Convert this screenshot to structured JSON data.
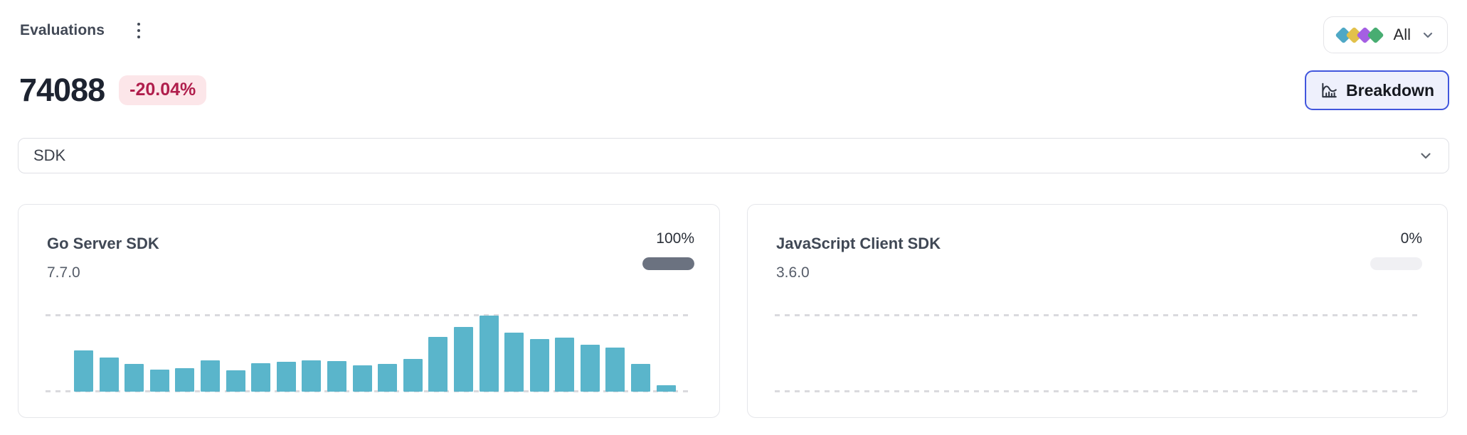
{
  "page": {
    "title": "Evaluations",
    "metric": {
      "value": "74088",
      "delta": "-20.04%"
    }
  },
  "toolbar": {
    "filter_all": {
      "label": "All",
      "diamond_colors": [
        "#4fa8c5",
        "#e2c14b",
        "#a55fe3",
        "#48ad72"
      ]
    },
    "breakdown_label": "Breakdown"
  },
  "dimension_select": {
    "value": "SDK"
  },
  "cards": [
    {
      "title": "Go Server SDK",
      "version": "7.7.0",
      "percent_label": "100%",
      "progress": 100
    },
    {
      "title": "JavaScript Client SDK",
      "version": "3.6.0",
      "percent_label": "0%",
      "progress": 0
    }
  ],
  "chart_data": [
    {
      "type": "bar",
      "title": "Go Server SDK",
      "values": [
        54,
        45,
        36,
        29,
        31,
        41,
        28,
        37,
        39,
        41,
        40,
        35,
        36,
        43,
        72,
        85,
        100,
        78,
        69,
        71,
        62,
        58,
        36,
        8
      ],
      "ylim": [
        0,
        100
      ],
      "bar_color": "#5ab5cb",
      "grid": "dashed top line and dashed baseline, no axis labels"
    },
    {
      "type": "bar",
      "title": "JavaScript Client SDK",
      "values": [],
      "ylim": [
        0,
        100
      ],
      "bar_color": "#5ab5cb",
      "grid": "dashed top line and dashed baseline, no axis labels"
    }
  ],
  "colors": {
    "delta_badge_bg": "#fce6e9",
    "delta_badge_text": "#b01e4c",
    "breakdown_border": "#4156dd",
    "breakdown_bg": "#eef0fc",
    "progress_fill": "#6b7280",
    "progress_track": "#f0f0f3",
    "gridline": "#dadade"
  }
}
